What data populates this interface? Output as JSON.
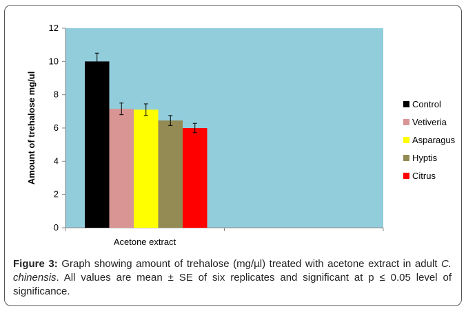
{
  "chart_data": {
    "type": "bar",
    "categories": [
      "Acetone extract"
    ],
    "series": [
      {
        "name": "Control",
        "values": [
          10.0
        ],
        "error": [
          0.5
        ],
        "color": "#000000"
      },
      {
        "name": "Vetiveria",
        "values": [
          7.15
        ],
        "error": [
          0.35
        ],
        "color": "#d99594"
      },
      {
        "name": "Asparagus",
        "values": [
          7.1
        ],
        "error": [
          0.35
        ],
        "color": "#ffff00"
      },
      {
        "name": "Hyptis",
        "values": [
          6.45
        ],
        "error": [
          0.3
        ],
        "color": "#948a54"
      },
      {
        "name": "Citrus",
        "values": [
          6.0
        ],
        "error": [
          0.28
        ],
        "color": "#ff0000"
      }
    ],
    "ylabel": "Amount of trehalose mg/ul",
    "xlabel": "",
    "ylim": [
      0,
      12
    ],
    "yticks": [
      0,
      2,
      4,
      6,
      8,
      10,
      12
    ],
    "legend_position": "right",
    "plot_background": "#92cddc"
  },
  "caption": {
    "label": "Figure 3:",
    "text1": " Graph showing amount of trehalose (mg/µl) treated with acetone extract in adult ",
    "species": "C. chinensis",
    "text2": ". All values are mean ± SE of six replicates and significant at p ≤ 0.05 level of significance."
  }
}
